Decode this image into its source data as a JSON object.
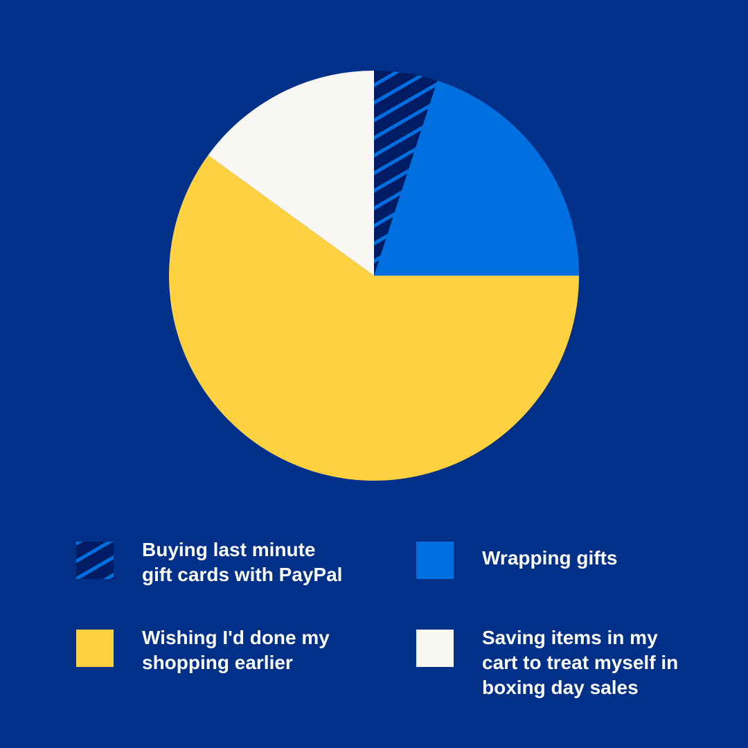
{
  "chart_data": {
    "type": "pie",
    "title": "",
    "start_angle": "top, clockwise",
    "slices": [
      {
        "label": "Buying last minute gift cards with PayPal",
        "value": 5,
        "color": "#001c64",
        "pattern": "diagonal-stripes",
        "stripe_color": "#0070e0"
      },
      {
        "label": "Wrapping gifts",
        "value": 20,
        "color": "#0070e0"
      },
      {
        "label": "Wishing I'd done my shopping earlier",
        "value": 60,
        "color": "#ffd140"
      },
      {
        "label": "Saving items in my cart to treat myself in boxing day sales",
        "value": 15,
        "color": "#f8f7f3"
      }
    ],
    "legend_placement": "bottom",
    "background": "#003087"
  },
  "legend": [
    {
      "line1": "Buying last minute",
      "line2": "gift cards with PayPal",
      "line3": ""
    },
    {
      "line1": "Wrapping gifts",
      "line2": "",
      "line3": ""
    },
    {
      "line1": "Wishing I'd done my",
      "line2": "shopping earlier",
      "line3": ""
    },
    {
      "line1": "Saving items in my",
      "line2": "cart to treat myself in",
      "line3": "boxing day sales"
    }
  ]
}
